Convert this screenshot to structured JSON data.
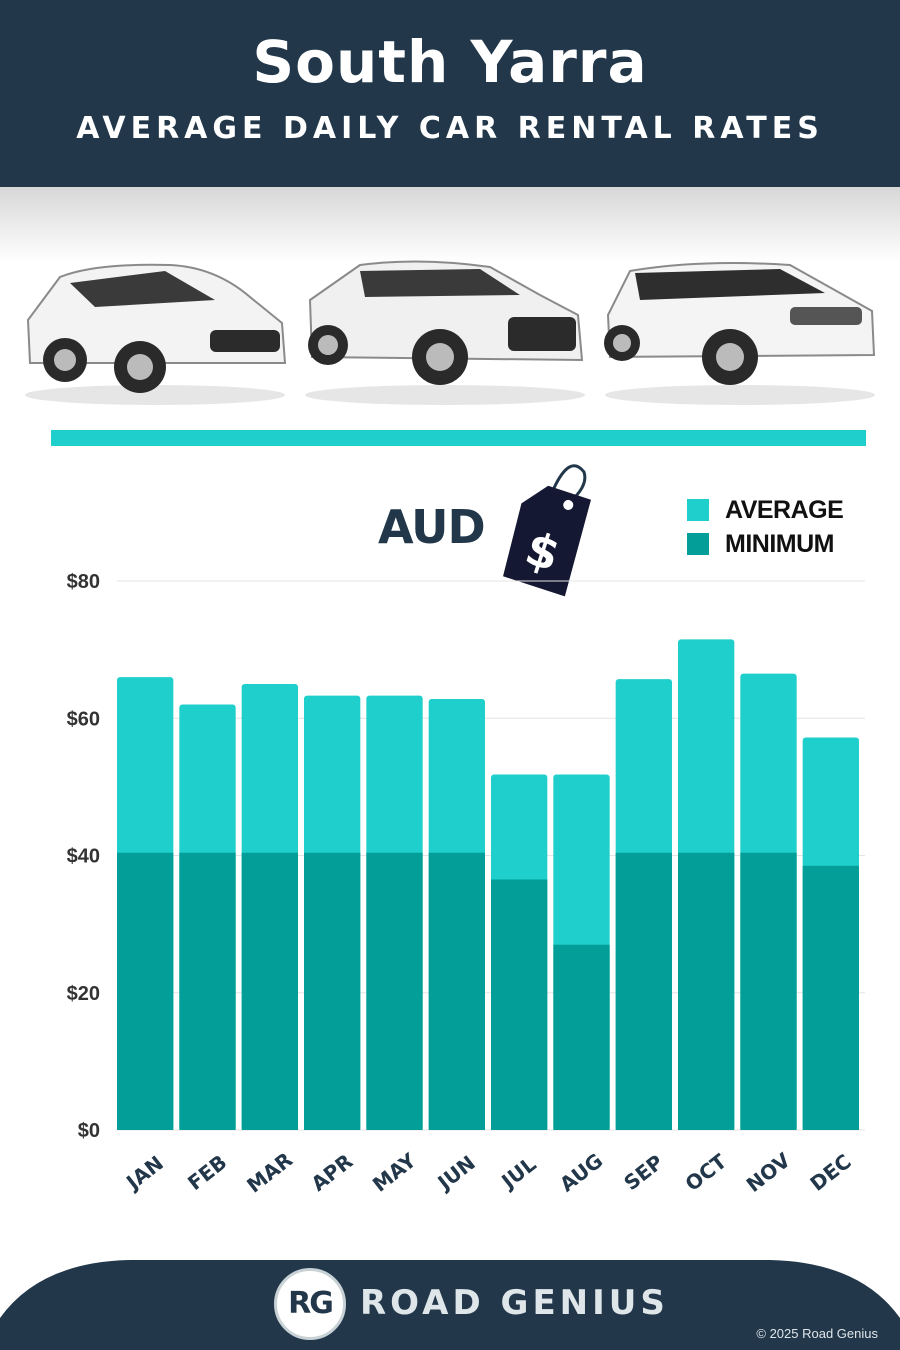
{
  "header": {
    "title": "South Yarra",
    "subtitle": "AVERAGE DAILY CAR RENTAL RATES"
  },
  "currency": {
    "label": "AUD",
    "tag_symbol": "$"
  },
  "legend": {
    "average": "AVERAGE",
    "minimum": "MINIMUM"
  },
  "colors": {
    "header_bg": "#22374a",
    "average": "#1ecfcb",
    "minimum": "#039e98",
    "accent_line": "#1ecfcb"
  },
  "chart_data": {
    "type": "bar",
    "stacked": "overlay",
    "categories": [
      "JAN",
      "FEB",
      "MAR",
      "APR",
      "MAY",
      "JUN",
      "JUL",
      "AUG",
      "SEP",
      "OCT",
      "NOV",
      "DEC"
    ],
    "series": [
      {
        "name": "AVERAGE",
        "values": [
          66,
          62,
          65,
          63.3,
          63.3,
          62.8,
          51.8,
          51.8,
          65.7,
          71.5,
          66.5,
          57.2
        ]
      },
      {
        "name": "MINIMUM",
        "values": [
          40.4,
          40.4,
          40.4,
          40.4,
          40.4,
          40.4,
          36.5,
          27,
          40.4,
          40.4,
          40.4,
          38.5
        ]
      }
    ],
    "yticks": [
      "$0",
      "$20",
      "$40",
      "$60",
      "$80"
    ],
    "ytick_values": [
      0,
      20,
      40,
      60,
      80
    ],
    "ylim": [
      0,
      80
    ],
    "grid": true,
    "legend_position": "top-right",
    "xlabel": "",
    "ylabel": ""
  },
  "footer": {
    "logo_initials": "RG",
    "brand": "ROAD GENIUS",
    "copyright": "© 2025 Road Genius"
  }
}
